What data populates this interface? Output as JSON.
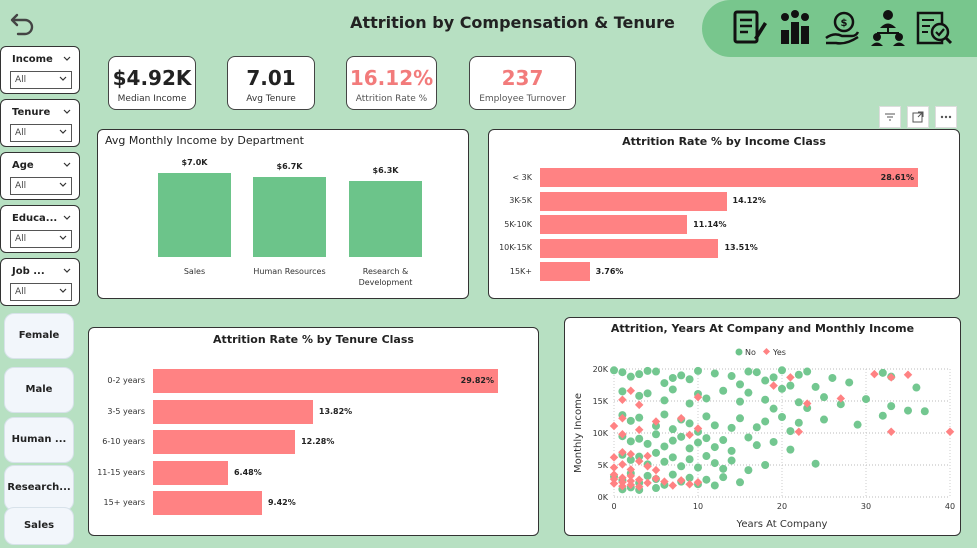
{
  "header": {
    "title": "Attrition by Compensation & Tenure",
    "back_icon": "back-arrow-icon",
    "nav_icons": [
      "report-icon",
      "team-chart-icon",
      "salary-hand-icon",
      "org-structure-icon",
      "analytics-check-icon"
    ]
  },
  "filters": [
    {
      "label": "Income",
      "value": "All"
    },
    {
      "label": "Tenure",
      "value": "All"
    },
    {
      "label": "Age",
      "value": "All"
    },
    {
      "label": "Educa...",
      "value": "All"
    },
    {
      "label": "Job ...",
      "value": "All"
    }
  ],
  "slicers": [
    "Female",
    "Male",
    "Human ...",
    "Research...",
    "Sales"
  ],
  "kpis": [
    {
      "value": "$4.92K",
      "label": "Median Income"
    },
    {
      "value": "7.01",
      "label": "Avg Tenure"
    },
    {
      "value": "16.12%",
      "label": "Attrition Rate %"
    },
    {
      "value": "237",
      "label": "Employee Turnover"
    }
  ],
  "visual_tools": [
    "filter-icon",
    "focus-mode-icon",
    "more-options-icon"
  ],
  "colors": {
    "background": "#b7e0c2",
    "accent": "#78c68d",
    "bar_green": "#6cc48a",
    "bar_red": "#ff8283",
    "no": "#6cc48a",
    "yes": "#ff8283"
  },
  "chart_data": [
    {
      "type": "bar",
      "title": "Avg Monthly Income by Department",
      "categories": [
        "Sales",
        "Human Resources",
        "Research & Development"
      ],
      "values": [
        7.0,
        6.7,
        6.3
      ],
      "labels": [
        "$7.0K",
        "$6.7K",
        "$6.3K"
      ],
      "category_lines": [
        [
          "Sales"
        ],
        [
          "Human Resources"
        ],
        [
          "Research &",
          "Development"
        ]
      ],
      "ylim": [
        0,
        7.5
      ]
    },
    {
      "type": "bar",
      "orientation": "horizontal",
      "title": "Attrition Rate % by Income Class",
      "categories": [
        "< 3K",
        "3K-5K",
        "5K-10K",
        "10K-15K",
        "15K+"
      ],
      "values": [
        28.61,
        14.12,
        11.14,
        13.51,
        3.76
      ],
      "labels": [
        "28.61%",
        "14.12%",
        "11.14%",
        "13.51%",
        "3.76%"
      ],
      "xlim": [
        0,
        28.61
      ]
    },
    {
      "type": "bar",
      "orientation": "horizontal",
      "title": "Attrition Rate % by Tenure Class",
      "categories": [
        "0-2 years",
        "3-5 years",
        "6-10 years",
        "11-15 years",
        "15+ years"
      ],
      "values": [
        29.82,
        13.82,
        12.28,
        6.48,
        9.42
      ],
      "labels": [
        "29.82%",
        "13.82%",
        "12.28%",
        "6.48%",
        "9.42%"
      ],
      "xlim": [
        0,
        29.82
      ]
    },
    {
      "type": "scatter",
      "title": "Attrition, Years At Company and Monthly Income",
      "xlabel": "Years At Company",
      "ylabel": "Monthly Income",
      "xlim": [
        0,
        40
      ],
      "ylim": [
        0,
        20000
      ],
      "xticks": [
        "0",
        "10",
        "20",
        "30",
        "40"
      ],
      "yticks": [
        "0K",
        "5K",
        "10K",
        "15K",
        "20K"
      ],
      "legend": [
        "No",
        "Yes"
      ],
      "legend_position": "top-center",
      "series": [
        {
          "name": "No",
          "points": [
            [
              1,
              19500
            ],
            [
              2,
              18800
            ],
            [
              3,
              19200
            ],
            [
              5,
              19600
            ],
            [
              6,
              17800
            ],
            [
              8,
              19000
            ],
            [
              9,
              18400
            ],
            [
              10,
              19700
            ],
            [
              12,
              19300
            ],
            [
              14,
              18900
            ],
            [
              15,
              17600
            ],
            [
              17,
              19500
            ],
            [
              18,
              18200
            ],
            [
              20,
              19800
            ],
            [
              21,
              17400
            ],
            [
              22,
              19100
            ],
            [
              24,
              17200
            ],
            [
              26,
              18600
            ],
            [
              28,
              17900
            ],
            [
              32,
              19400
            ],
            [
              33,
              18800
            ],
            [
              36,
              17100
            ],
            [
              1,
              16500
            ],
            [
              3,
              15800
            ],
            [
              4,
              16200
            ],
            [
              6,
              15100
            ],
            [
              7,
              16800
            ],
            [
              9,
              14600
            ],
            [
              10,
              16100
            ],
            [
              11,
              15400
            ],
            [
              13,
              16600
            ],
            [
              15,
              14900
            ],
            [
              16,
              16300
            ],
            [
              18,
              15200
            ],
            [
              19,
              13800
            ],
            [
              20,
              16900
            ],
            [
              22,
              14800
            ],
            [
              23,
              13900
            ],
            [
              25,
              15600
            ],
            [
              27,
              14500
            ],
            [
              30,
              15300
            ],
            [
              33,
              14200
            ],
            [
              35,
              13500
            ],
            [
              37,
              13400
            ],
            [
              1,
              12800
            ],
            [
              2,
              11900
            ],
            [
              3,
              12400
            ],
            [
              5,
              11100
            ],
            [
              6,
              12900
            ],
            [
              7,
              10600
            ],
            [
              8,
              12100
            ],
            [
              9,
              11500
            ],
            [
              10,
              10200
            ],
            [
              11,
              12600
            ],
            [
              12,
              11200
            ],
            [
              14,
              10800
            ],
            [
              15,
              12300
            ],
            [
              17,
              10900
            ],
            [
              18,
              11800
            ],
            [
              20,
              12500
            ],
            [
              21,
              10300
            ],
            [
              22,
              11600
            ],
            [
              25,
              12100
            ],
            [
              29,
              11300
            ],
            [
              32,
              12700
            ],
            [
              1,
              9500
            ],
            [
              2,
              8700
            ],
            [
              3,
              9100
            ],
            [
              4,
              8300
            ],
            [
              5,
              9800
            ],
            [
              6,
              7900
            ],
            [
              7,
              8800
            ],
            [
              8,
              9400
            ],
            [
              9,
              7600
            ],
            [
              10,
              8500
            ],
            [
              11,
              9200
            ],
            [
              12,
              7800
            ],
            [
              13,
              8900
            ],
            [
              14,
              7200
            ],
            [
              16,
              9300
            ],
            [
              17,
              8100
            ],
            [
              19,
              8600
            ],
            [
              21,
              7400
            ],
            [
              24,
              5200
            ],
            [
              1,
              6600
            ],
            [
              2,
              5800
            ],
            [
              3,
              6300
            ],
            [
              4,
              5100
            ],
            [
              5,
              6900
            ],
            [
              6,
              5500
            ],
            [
              7,
              6200
            ],
            [
              8,
              4800
            ],
            [
              9,
              5900
            ],
            [
              10,
              4600
            ],
            [
              11,
              6400
            ],
            [
              12,
              5300
            ],
            [
              13,
              4400
            ],
            [
              14,
              5700
            ],
            [
              16,
              4200
            ],
            [
              18,
              5000
            ],
            [
              0,
              3200
            ],
            [
              1,
              2600
            ],
            [
              2,
              3700
            ],
            [
              3,
              2200
            ],
            [
              4,
              3300
            ],
            [
              5,
              2800
            ],
            [
              6,
              1900
            ],
            [
              7,
              3500
            ],
            [
              8,
              2400
            ],
            [
              9,
              3000
            ],
            [
              10,
              2000
            ],
            [
              11,
              2700
            ],
            [
              12,
              1800
            ],
            [
              13,
              3100
            ],
            [
              15,
              2300
            ],
            [
              1,
              1200
            ],
            [
              2,
              1500
            ],
            [
              3,
              1100
            ],
            [
              5,
              1400
            ],
            [
              0,
              19800
            ],
            [
              4,
              19700
            ],
            [
              7,
              18600
            ],
            [
              16,
              19600
            ],
            [
              19,
              18700
            ],
            [
              23,
              19600
            ]
          ]
        },
        {
          "name": "Yes",
          "points": [
            [
              0,
              2100
            ],
            [
              0,
              2800
            ],
            [
              0,
              3500
            ],
            [
              1,
              2300
            ],
            [
              1,
              3000
            ],
            [
              1,
              1700
            ],
            [
              2,
              2500
            ],
            [
              2,
              1900
            ],
            [
              2,
              3300
            ],
            [
              3,
              2700
            ],
            [
              3,
              1600
            ],
            [
              4,
              2200
            ],
            [
              5,
              2900
            ],
            [
              6,
              2400
            ],
            [
              7,
              1800
            ],
            [
              8,
              2600
            ],
            [
              9,
              2000
            ],
            [
              10,
              2300
            ],
            [
              0,
              4600
            ],
            [
              1,
              5100
            ],
            [
              2,
              4300
            ],
            [
              3,
              5600
            ],
            [
              4,
              4800
            ],
            [
              5,
              4200
            ],
            [
              0,
              6200
            ],
            [
              1,
              7000
            ],
            [
              2,
              6700
            ],
            [
              4,
              6400
            ],
            [
              1,
              9800
            ],
            [
              0,
              11100
            ],
            [
              1,
              12300
            ],
            [
              3,
              10500
            ],
            [
              5,
              11800
            ],
            [
              9,
              9700
            ],
            [
              10,
              10700
            ],
            [
              22,
              10200
            ],
            [
              1,
              15200
            ],
            [
              2,
              16600
            ],
            [
              3,
              14400
            ],
            [
              10,
              15600
            ],
            [
              19,
              17400
            ],
            [
              21,
              18700
            ],
            [
              23,
              14600
            ],
            [
              27,
              15400
            ],
            [
              31,
              19200
            ],
            [
              33,
              18700
            ],
            [
              35,
              19100
            ],
            [
              33,
              10200
            ],
            [
              40,
              10200
            ],
            [
              8,
              12300
            ]
          ]
        }
      ]
    }
  ]
}
